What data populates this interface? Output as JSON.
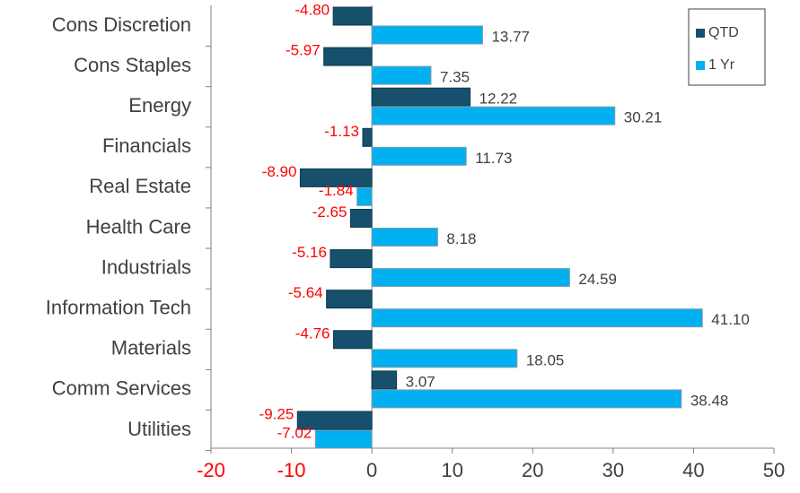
{
  "chart_data": {
    "type": "bar",
    "orientation": "horizontal",
    "categories": [
      "Cons Discretion",
      "Cons Staples",
      "Energy",
      "Financials",
      "Real Estate",
      "Health Care",
      "Industrials",
      "Information Tech",
      "Materials",
      "Comm Services",
      "Utilities"
    ],
    "series": [
      {
        "name": "QTD",
        "color": "#17506d",
        "values": [
          -4.8,
          -5.97,
          12.22,
          -1.13,
          -8.9,
          -2.65,
          -5.16,
          -5.64,
          -4.76,
          3.07,
          -9.25
        ],
        "value_labels": [
          "-4.80",
          "-5.97",
          "12.22",
          "-1.13",
          "-8.90",
          "-2.65",
          "-5.16",
          "-5.64",
          "-4.76",
          "3.07",
          "-9.25"
        ]
      },
      {
        "name": "1 Yr",
        "color": "#00b0f0",
        "values": [
          13.77,
          7.35,
          30.21,
          11.73,
          -1.84,
          8.18,
          24.59,
          41.1,
          18.05,
          38.48,
          -7.02
        ],
        "value_labels": [
          "13.77",
          "7.35",
          "30.21",
          "11.73",
          "-1.84",
          "8.18",
          "24.59",
          "41.10",
          "18.05",
          "38.48",
          "-7.02"
        ]
      }
    ],
    "xlim": [
      -20,
      50
    ],
    "xticks": [
      -20,
      -10,
      0,
      10,
      20,
      30,
      40,
      50
    ],
    "legend": "upper right"
  }
}
